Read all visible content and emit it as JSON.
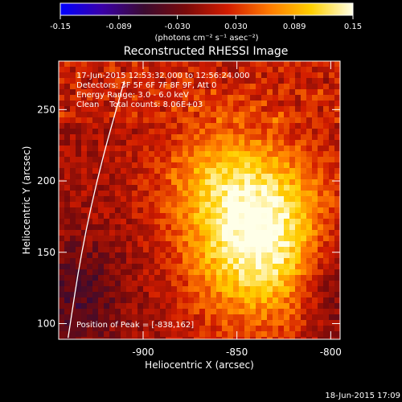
{
  "colorbar": {
    "ticks": [
      "-0.15",
      "-0.089",
      "-0.030",
      "0.030",
      "0.089",
      "0.15"
    ],
    "units": "(photons cm⁻² s⁻¹ asec⁻²)",
    "range": [
      -0.15,
      0.15
    ],
    "colormap": [
      "#0000ff",
      "#3a00a8",
      "#3b0b30",
      "#7a0a0a",
      "#d21c00",
      "#ff7a00",
      "#ffd000",
      "#ffffe8"
    ]
  },
  "chart_data": {
    "type": "heatmap",
    "title": "Reconstructed RHESSI Image",
    "xlabel": "Heliocentric X (arcsec)",
    "ylabel": "Heliocentric Y (arcsec)",
    "xlim": [
      -945,
      -795
    ],
    "ylim": [
      89,
      284
    ],
    "xticks": [
      "-900",
      "-850",
      "-800"
    ],
    "xtick_values": [
      -900,
      -850,
      -800
    ],
    "yticks": [
      "100",
      "150",
      "200",
      "250"
    ],
    "ytick_values": [
      100,
      150,
      200,
      250
    ],
    "info_lines": [
      "17-Jun-2015 12:53:32.000 to 12:56:24.000",
      "Detectors: 3F 5F 6F 7F 8F 9F, Att 0",
      "Energy Range: 3.0 - 6.0 keV",
      "Clean    Total counts: 8.06E+03"
    ],
    "peak_label": "Position of Peak = [-838,162]",
    "peak": [
      -838,
      162
    ],
    "peak_value": 0.15,
    "limb_arc": [
      [
        -940,
        90
      ],
      [
        -933,
        150
      ],
      [
        -923,
        210
      ],
      [
        -910,
        270
      ]
    ]
  },
  "footer": {
    "date": "18-Jun-2015 17:09"
  }
}
